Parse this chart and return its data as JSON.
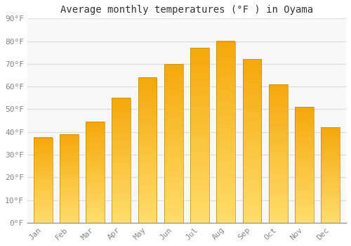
{
  "title": "Average monthly temperatures (°F ) in Oyama",
  "months": [
    "Jan",
    "Feb",
    "Mar",
    "Apr",
    "May",
    "Jun",
    "Jul",
    "Aug",
    "Sep",
    "Oct",
    "Nov",
    "Dec"
  ],
  "values": [
    37.5,
    39.0,
    44.5,
    55.0,
    64.0,
    70.0,
    77.0,
    80.0,
    72.0,
    61.0,
    51.0,
    42.0
  ],
  "bar_color_top": "#F5A800",
  "bar_color_bottom": "#FFD966",
  "bar_edge_color": "#C8890A",
  "ylim": [
    0,
    90
  ],
  "yticks": [
    0,
    10,
    20,
    30,
    40,
    50,
    60,
    70,
    80,
    90
  ],
  "ytick_labels": [
    "0°F",
    "10°F",
    "20°F",
    "30°F",
    "40°F",
    "50°F",
    "60°F",
    "70°F",
    "80°F",
    "90°F"
  ],
  "background_color": "#FFFFFF",
  "plot_bg_color": "#F8F8F8",
  "grid_color": "#DDDDDD",
  "title_fontsize": 10,
  "tick_fontsize": 8,
  "tick_color": "#888888",
  "font_family": "monospace"
}
